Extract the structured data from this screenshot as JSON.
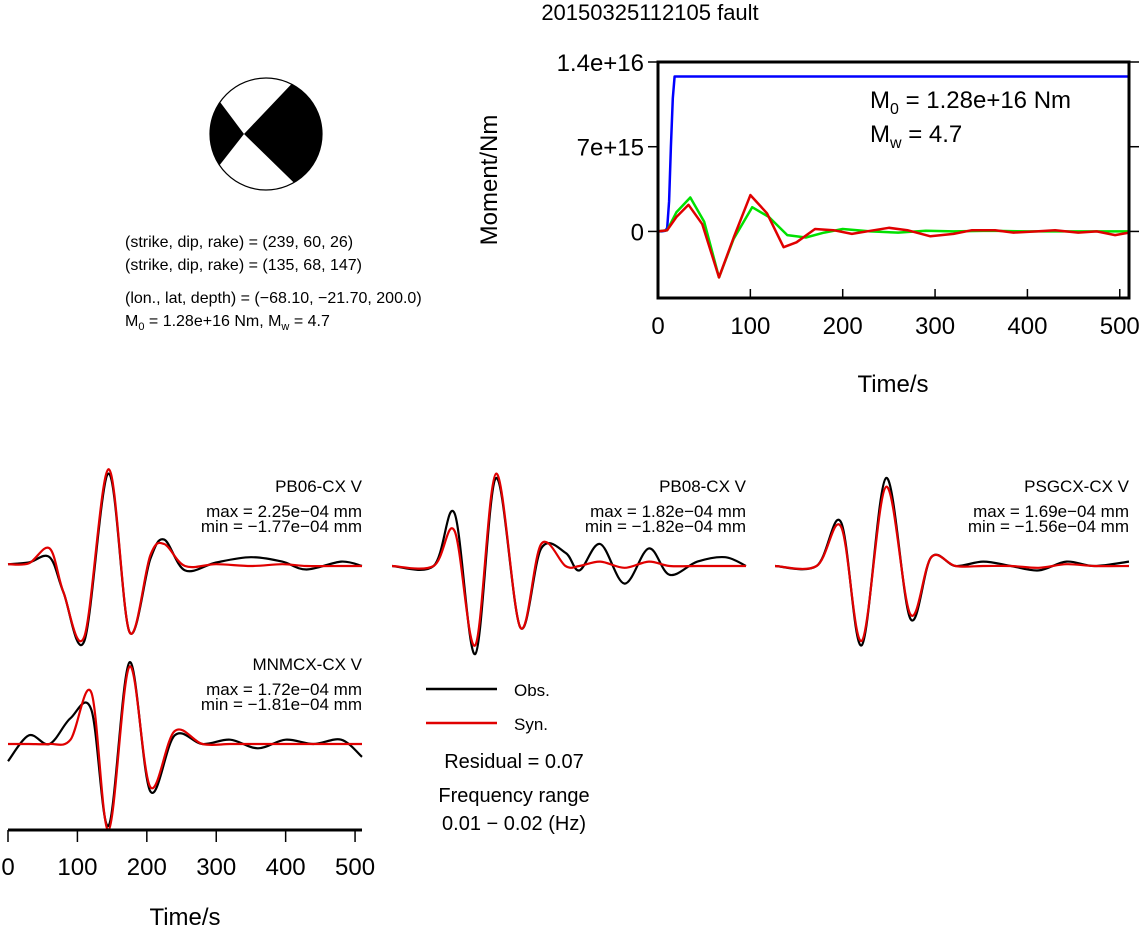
{
  "title": "20150325112105 fault",
  "beachball": {
    "lines": [
      "(strike, dip, rake) = (239, 60, 26)",
      "(strike, dip, rake) = (135, 68, 147)",
      "(lon., lat, depth) = (−68.10, −21.70, 200.0)"
    ],
    "moment_line": {
      "m0_symbol": "M",
      "m0_sub": "0",
      "m0_text": " = 1.28e+16 Nm, ",
      "mw_symbol": "M",
      "mw_sub": "w",
      "mw_text": " = 4.7"
    },
    "colors": {
      "fill": "#000000",
      "background": "#ffffff"
    }
  },
  "chart_data": [
    {
      "type": "line",
      "id": "moment-function",
      "title": "",
      "xlabel": "Time/s",
      "ylabel": "Moment/Nm",
      "xlim": [
        0,
        510
      ],
      "ylim": [
        -5500000000000000.0,
        1.4e+16
      ],
      "x_ticks": [
        0,
        100,
        200,
        300,
        400,
        500
      ],
      "y_ticks": [
        0,
        7000000000000000.0,
        1.4e+16
      ],
      "y_tick_labels": [
        "0",
        "7e+15",
        "1.4e+16"
      ],
      "annotations": {
        "m0": {
          "symbol": "M",
          "sub": "0",
          "text": " = 1.28e+16 Nm"
        },
        "mw": {
          "symbol": "M",
          "sub": "w",
          "text": " = 4.7"
        }
      },
      "series": [
        {
          "color": "#0000ff",
          "x": [
            0,
            4,
            8,
            10,
            12,
            14,
            16,
            18,
            20,
            510
          ],
          "y": [
            0,
            0,
            50000000000000.0,
            300000000000000.0,
            2500000000000000.0,
            7000000000000000.0,
            1.1e+16,
            1.28e+16,
            1.28e+16,
            1.28e+16
          ]
        },
        {
          "color": "#00e000",
          "x": [
            0,
            10,
            20,
            35,
            50,
            66,
            82,
            102,
            120,
            140,
            160,
            180,
            200,
            230,
            260,
            290,
            320,
            360,
            400,
            450,
            510
          ],
          "y": [
            0,
            100000000000000.0,
            1600000000000000.0,
            2800000000000000.0,
            800000000000000.0,
            -3800000000000000.0,
            -600000000000000.0,
            2000000000000000.0,
            1200000000000000.0,
            -300000000000000.0,
            -500000000000000.0,
            -100000000000000.0,
            200000000000000.0,
            0,
            -100000000000000.0,
            50000000000000.0,
            0,
            50000000000000.0,
            0,
            0,
            0
          ]
        },
        {
          "color": "#e00000",
          "x": [
            0,
            10,
            20,
            33,
            48,
            66,
            82,
            100,
            118,
            136,
            150,
            170,
            190,
            210,
            230,
            250,
            270,
            295,
            320,
            340,
            365,
            385,
            410,
            430,
            455,
            475,
            495,
            510
          ],
          "y": [
            0,
            100000000000000.0,
            1200000000000000.0,
            2200000000000000.0,
            600000000000000.0,
            -3800000000000000.0,
            -500000000000000.0,
            3000000000000000.0,
            1500000000000000.0,
            -1300000000000000.0,
            -900000000000000.0,
            200000000000000.0,
            100000000000000.0,
            -200000000000000.0,
            50000000000000.0,
            300000000000000.0,
            100000000000000.0,
            -400000000000000.0,
            -200000000000000.0,
            100000000000000.0,
            100000000000000.0,
            -100000000000000.0,
            0,
            100000000000000.0,
            -100000000000000.0,
            0,
            -300000000000000.0,
            -100000000000000.0
          ]
        }
      ]
    },
    {
      "type": "line",
      "id": "waveforms",
      "xlabel": "Time/s",
      "xlim": [
        0,
        510
      ],
      "x_ticks": [
        0,
        100,
        200,
        300,
        400,
        500
      ],
      "stations": [
        {
          "name": "PB06-CX V",
          "max": "max = 2.25e−04 mm",
          "min": "min = −1.77e−04 mm",
          "obs": [
            [
              0,
              0.02
            ],
            [
              30,
              0.04
            ],
            [
              60,
              0.1
            ],
            [
              80,
              -0.3
            ],
            [
              110,
              -0.85
            ],
            [
              145,
              1.05
            ],
            [
              175,
              -0.75
            ],
            [
              205,
              0.08
            ],
            [
              225,
              0.3
            ],
            [
              255,
              -0.05
            ],
            [
              300,
              0.04
            ],
            [
              350,
              0.1
            ],
            [
              395,
              0.05
            ],
            [
              430,
              -0.04
            ],
            [
              480,
              0.05
            ],
            [
              510,
              0.0
            ]
          ],
          "syn": [
            [
              0,
              0.02
            ],
            [
              30,
              0.03
            ],
            [
              60,
              0.2
            ],
            [
              80,
              -0.3
            ],
            [
              110,
              -0.8
            ],
            [
              145,
              1.1
            ],
            [
              175,
              -0.75
            ],
            [
              205,
              0.12
            ],
            [
              225,
              0.25
            ],
            [
              255,
              0.0
            ],
            [
              300,
              0.02
            ],
            [
              350,
              0.0
            ],
            [
              395,
              0.02
            ],
            [
              430,
              0.0
            ],
            [
              480,
              0.0
            ],
            [
              510,
              0.0
            ]
          ]
        },
        {
          "name": "PB08-CX V",
          "max": "max = 1.82e−04 mm",
          "min": "min = −1.82e−04 mm",
          "obs": [
            [
              0,
              0.0
            ],
            [
              60,
              0.0
            ],
            [
              90,
              0.6
            ],
            [
              120,
              -1.0
            ],
            [
              150,
              1.0
            ],
            [
              185,
              -0.7
            ],
            [
              215,
              0.2
            ],
            [
              250,
              0.15
            ],
            [
              270,
              -0.05
            ],
            [
              300,
              0.25
            ],
            [
              335,
              -0.2
            ],
            [
              370,
              0.2
            ],
            [
              400,
              -0.1
            ],
            [
              440,
              0.05
            ],
            [
              480,
              0.1
            ],
            [
              510,
              0.0
            ]
          ],
          "syn": [
            [
              0,
              0.0
            ],
            [
              60,
              0.0
            ],
            [
              90,
              0.4
            ],
            [
              120,
              -0.9
            ],
            [
              150,
              1.05
            ],
            [
              185,
              -0.7
            ],
            [
              215,
              0.25
            ],
            [
              250,
              0.0
            ],
            [
              270,
              0.0
            ],
            [
              300,
              0.05
            ],
            [
              335,
              -0.02
            ],
            [
              370,
              0.05
            ],
            [
              400,
              0.0
            ],
            [
              440,
              0.0
            ],
            [
              480,
              0.0
            ],
            [
              510,
              0.0
            ]
          ]
        },
        {
          "name": "PSGCX-CX V",
          "max": "max = 1.69e−04 mm",
          "min": "min = −1.56e−04 mm",
          "obs": [
            [
              0,
              0.0
            ],
            [
              60,
              0.0
            ],
            [
              95,
              0.5
            ],
            [
              125,
              -0.9
            ],
            [
              160,
              1.0
            ],
            [
              195,
              -0.6
            ],
            [
              225,
              0.1
            ],
            [
              260,
              0.0
            ],
            [
              300,
              0.05
            ],
            [
              340,
              0.0
            ],
            [
              380,
              -0.05
            ],
            [
              420,
              0.05
            ],
            [
              460,
              0.0
            ],
            [
              510,
              0.05
            ]
          ],
          "syn": [
            [
              0,
              0.0
            ],
            [
              60,
              0.0
            ],
            [
              95,
              0.45
            ],
            [
              125,
              -0.85
            ],
            [
              160,
              0.9
            ],
            [
              195,
              -0.55
            ],
            [
              225,
              0.1
            ],
            [
              260,
              0.0
            ],
            [
              300,
              0.0
            ],
            [
              340,
              0.0
            ],
            [
              380,
              -0.02
            ],
            [
              420,
              0.02
            ],
            [
              460,
              0.0
            ],
            [
              510,
              0.0
            ]
          ]
        },
        {
          "name": "MNMCX-CX V",
          "max": "max = 1.72e−04 mm",
          "min": "min = −1.81e−04 mm",
          "obs": [
            [
              0,
              -0.2
            ],
            [
              30,
              0.1
            ],
            [
              60,
              0.0
            ],
            [
              90,
              0.3
            ],
            [
              120,
              0.4
            ],
            [
              145,
              -0.95
            ],
            [
              175,
              0.95
            ],
            [
              205,
              -0.55
            ],
            [
              240,
              0.1
            ],
            [
              280,
              0.0
            ],
            [
              320,
              0.05
            ],
            [
              360,
              -0.05
            ],
            [
              400,
              0.05
            ],
            [
              440,
              0.0
            ],
            [
              480,
              0.05
            ],
            [
              510,
              -0.15
            ]
          ],
          "syn": [
            [
              0,
              0.0
            ],
            [
              30,
              0.0
            ],
            [
              60,
              0.0
            ],
            [
              90,
              0.05
            ],
            [
              120,
              0.6
            ],
            [
              145,
              -1.0
            ],
            [
              175,
              0.9
            ],
            [
              205,
              -0.5
            ],
            [
              240,
              0.15
            ],
            [
              280,
              0.0
            ],
            [
              320,
              0.0
            ],
            [
              360,
              0.0
            ],
            [
              400,
              0.0
            ],
            [
              440,
              0.0
            ],
            [
              480,
              0.0
            ],
            [
              510,
              0.0
            ]
          ]
        }
      ],
      "legend": {
        "obs_label": "Obs.",
        "syn_label": "Syn.",
        "obs_color": "#000000",
        "syn_color": "#e00000"
      },
      "residual": "Residual = 0.07",
      "freq_title": "Frequency range",
      "freq_value": "0.01 − 0.02 (Hz)"
    }
  ]
}
